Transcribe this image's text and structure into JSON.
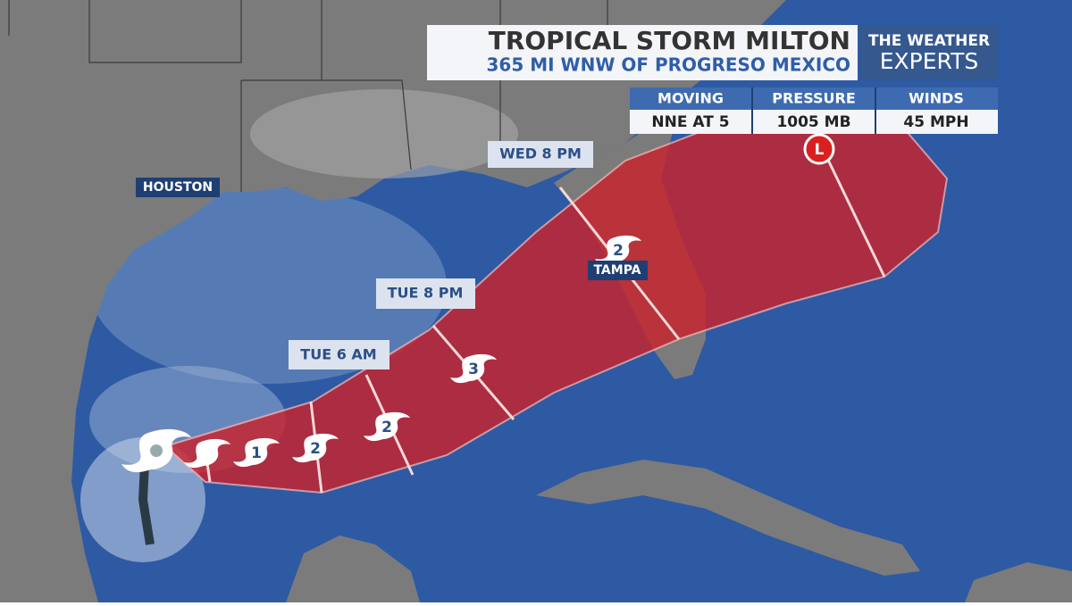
{
  "header": {
    "title": "TROPICAL STORM MILTON",
    "subtitle": "365 MI WNW OF PROGRESO MEXICO"
  },
  "logo": {
    "line1": "THE WEATHER",
    "line2": "EXPERTS"
  },
  "stats": {
    "headers": [
      "MOVING",
      "PRESSURE",
      "WINDS"
    ],
    "values": [
      "NNE AT 5",
      "1005 MB",
      "45 MPH"
    ]
  },
  "time_labels": [
    "TUE 6 AM",
    "TUE 8 PM",
    "WED 8 PM"
  ],
  "cities": [
    "HOUSTON",
    "TAMPA"
  ],
  "forecast_points": [
    1,
    2,
    2,
    3,
    2
  ],
  "low_marker": "L"
}
